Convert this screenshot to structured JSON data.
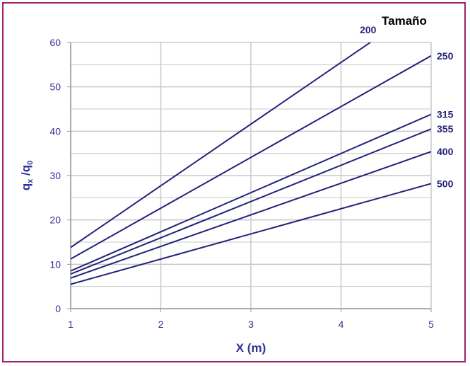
{
  "chart_data": {
    "type": "line",
    "xlabel": "X (m)",
    "ylabel_main": "q",
    "ylabel_sub1": "x",
    "ylabel_mid": " /q",
    "ylabel_sub2": "0",
    "legend_title": "Tamaño",
    "xlim": [
      1,
      5
    ],
    "ylim": [
      0,
      60
    ],
    "xticks": [
      1,
      2,
      3,
      4,
      5
    ],
    "yticks": [
      0,
      10,
      20,
      30,
      40,
      50,
      60
    ],
    "grid": true,
    "line_color": "#23237a",
    "grid_color": "#c8c8c8",
    "axis_text_color": "#333399",
    "border_color": "#a0216a",
    "series": [
      {
        "name": "200",
        "x": [
          1,
          5
        ],
        "y": [
          13.8,
          69.4
        ]
      },
      {
        "name": "250",
        "x": [
          1,
          5
        ],
        "y": [
          11.2,
          57.0
        ]
      },
      {
        "name": "315",
        "x": [
          1,
          5
        ],
        "y": [
          8.5,
          43.8
        ]
      },
      {
        "name": "355",
        "x": [
          1,
          5
        ],
        "y": [
          7.8,
          40.5
        ]
      },
      {
        "name": "400",
        "x": [
          1,
          5
        ],
        "y": [
          6.9,
          35.4
        ]
      },
      {
        "name": "500",
        "x": [
          1,
          5
        ],
        "y": [
          5.5,
          28.2
        ]
      }
    ]
  }
}
